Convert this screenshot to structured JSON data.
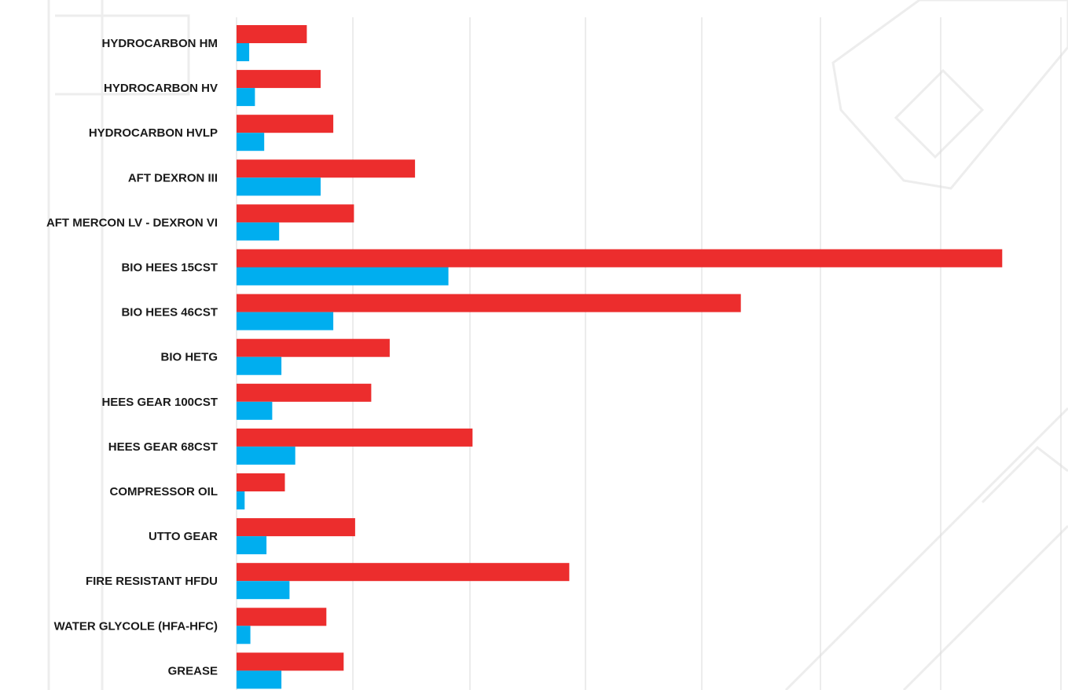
{
  "colors": {
    "series_a": "#ec2d2d",
    "series_b": "#00aeef",
    "grid": "#d9d9d9",
    "label": "#1a1a1a",
    "watermark": "#ededed"
  },
  "chart_data": {
    "type": "bar",
    "orientation": "horizontal",
    "categories": [
      "HYDROCARBON HM",
      "HYDROCARBON HV",
      "HYDROCARBON HVLP",
      "AFT DEXRON III",
      "AFT MERCON LV - DEXRON VI",
      "BIO HEES 15CST",
      "BIO HEES 46CST",
      "BIO HETG",
      "HEES GEAR 100CST",
      "HEES GEAR 68CST",
      "COMPRESSOR OIL",
      "UTTO GEAR",
      "FIRE RESISTANT HFDU",
      "WATER GLYCOLE (HFA-HFC)",
      "GREASE"
    ],
    "series": [
      {
        "values": [
          0.61,
          0.73,
          0.84,
          1.55,
          1.02,
          6.65,
          4.38,
          1.33,
          1.17,
          2.05,
          0.42,
          1.03,
          2.89,
          0.78,
          0.93
        ]
      },
      {
        "values": [
          0.11,
          0.16,
          0.24,
          0.73,
          0.37,
          1.84,
          0.84,
          0.39,
          0.31,
          0.51,
          0.07,
          0.26,
          0.46,
          0.12,
          0.39
        ]
      }
    ],
    "xlim": [
      0,
      7
    ],
    "grid": true,
    "legend": "none",
    "title": "",
    "xlabel": "",
    "ylabel": ""
  }
}
